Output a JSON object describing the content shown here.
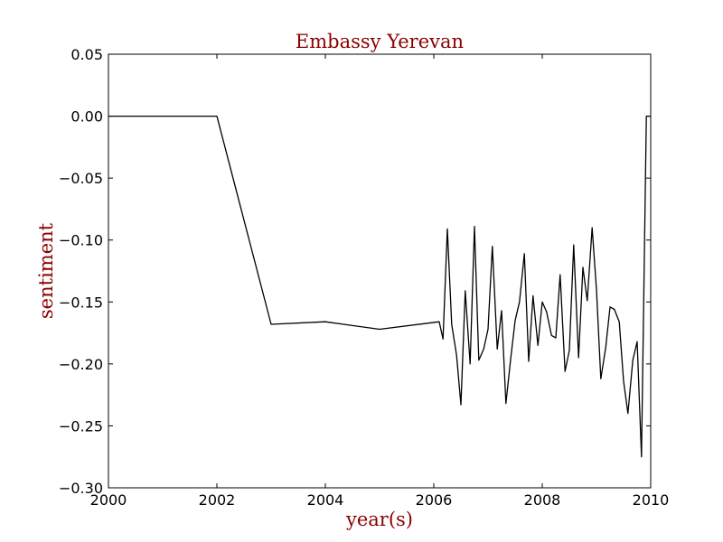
{
  "chart_data": {
    "type": "line",
    "title": "Embassy Yerevan",
    "xlabel": "year(s)",
    "ylabel": "sentiment",
    "xlim": [
      2000,
      2010
    ],
    "ylim": [
      -0.3,
      0.05
    ],
    "x_ticks": [
      2000,
      2002,
      2004,
      2006,
      2008,
      2010
    ],
    "x_tick_labels": [
      "2000",
      "2002",
      "2004",
      "2006",
      "2008",
      "2010"
    ],
    "y_ticks": [
      0.05,
      0.0,
      -0.05,
      -0.1,
      -0.15,
      -0.2,
      -0.25,
      -0.3
    ],
    "y_tick_labels": [
      "0.05",
      "0.00",
      "−0.05",
      "−0.10",
      "−0.15",
      "−0.20",
      "−0.25",
      "−0.30"
    ],
    "grid": false,
    "colors": {
      "title": "#8b0000",
      "labels": "#8b0000",
      "line": "#000000"
    },
    "series": [
      {
        "x": [
          2000.0,
          2002.0,
          2003.0,
          2004.0,
          2005.0,
          2006.1,
          2006.17,
          2006.25,
          2006.33,
          2006.42,
          2006.5,
          2006.58,
          2006.67,
          2006.75,
          2006.83,
          2006.92,
          2007.0,
          2007.08,
          2007.17,
          2007.25,
          2007.33,
          2007.42,
          2007.5,
          2007.58,
          2007.67,
          2007.75,
          2007.83,
          2007.92,
          2008.0,
          2008.08,
          2008.17,
          2008.25,
          2008.33,
          2008.42,
          2008.5,
          2008.58,
          2008.67,
          2008.75,
          2008.83,
          2008.92,
          2009.0,
          2009.08,
          2009.17,
          2009.25,
          2009.33,
          2009.42,
          2009.5,
          2009.58,
          2009.67,
          2009.75,
          2009.83,
          2009.92,
          2010.0
        ],
        "y": [
          0.0,
          0.0,
          -0.168,
          -0.166,
          -0.172,
          -0.166,
          -0.18,
          -0.091,
          -0.168,
          -0.193,
          -0.233,
          -0.141,
          -0.2,
          -0.089,
          -0.197,
          -0.188,
          -0.172,
          -0.105,
          -0.188,
          -0.157,
          -0.232,
          -0.195,
          -0.165,
          -0.15,
          -0.111,
          -0.198,
          -0.145,
          -0.185,
          -0.15,
          -0.158,
          -0.177,
          -0.179,
          -0.128,
          -0.206,
          -0.189,
          -0.104,
          -0.195,
          -0.122,
          -0.149,
          -0.09,
          -0.14,
          -0.212,
          -0.187,
          -0.154,
          -0.156,
          -0.166,
          -0.214,
          -0.24,
          -0.197,
          -0.182,
          -0.275,
          0.0,
          0.0
        ]
      }
    ]
  }
}
